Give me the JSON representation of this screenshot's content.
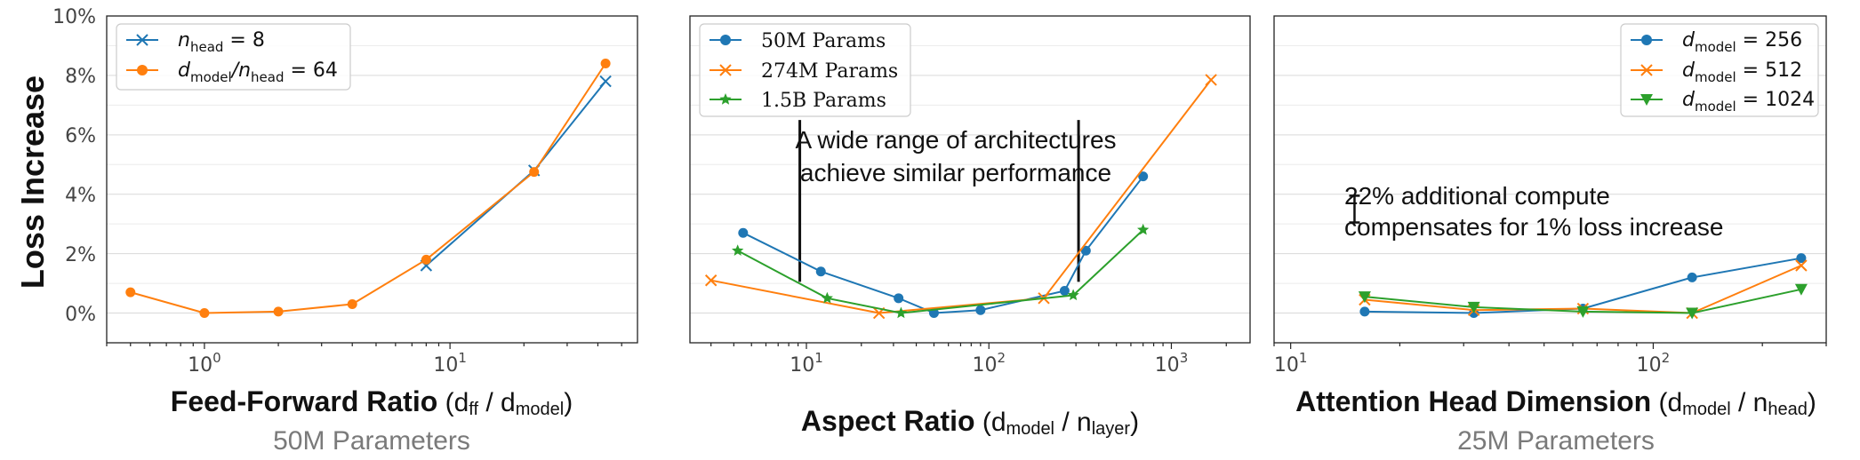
{
  "figure": {
    "ylabel": "Loss Increase",
    "y_ticks": [
      "0%",
      "2%",
      "4%",
      "6%",
      "8%",
      "10%"
    ]
  },
  "colors": {
    "blue": "#1f77b4",
    "orange": "#ff7f0e",
    "green": "#2ca02c"
  },
  "panels": [
    {
      "xlabel": {
        "bold": "Feed-Forward Ratio",
        "normal": " (d",
        "s1": "ff",
        "mid": " / d",
        "s2": "model",
        "end": ")"
      },
      "subtitle": "50M Parameters",
      "legend": {
        "items": [
          {
            "base": "n",
            "sub": "head",
            "rest": " = 8"
          },
          {
            "base": "d",
            "sub": "model",
            "mid": "/n",
            "sub2": "head",
            "rest": " = 64"
          }
        ]
      }
    },
    {
      "xlabel": {
        "bold": "Aspect Ratio",
        "normal": " (d",
        "s1": "model",
        "mid": " / n",
        "s2": "layer",
        "end": ")"
      },
      "subtitle": "",
      "legend": {
        "items": [
          "50M Params",
          "274M Params",
          "1.5B Params"
        ]
      },
      "annotation": [
        "A wide range of architectures",
        "achieve similar performance"
      ]
    },
    {
      "xlabel": {
        "bold": "Attention Head Dimension",
        "normal": " (d",
        "s1": "model",
        "mid": " / n",
        "s2": "head",
        "end": ")"
      },
      "subtitle": "25M Parameters",
      "legend": {
        "items": [
          {
            "base": "d",
            "sub": "model",
            "rest": " = 256"
          },
          {
            "base": "d",
            "sub": "model",
            "rest": " = 512"
          },
          {
            "base": "d",
            "sub": "model",
            "rest": " = 1024"
          }
        ]
      },
      "annotation": [
        "22% additional compute",
        "compensates for 1% loss increase"
      ]
    }
  ],
  "chart_data": [
    {
      "type": "line",
      "xscale": "log",
      "xlim": [
        0.4,
        58
      ],
      "ylim": [
        -1,
        10
      ],
      "x_tick_labels": [
        "10^0",
        "10^1"
      ],
      "grid": "horizontal",
      "legend_position": "top-left",
      "series": [
        {
          "name": "n_head = 8",
          "color": "#1f77b4",
          "marker": "x",
          "x": [
            8,
            22,
            43
          ],
          "y": [
            1.6,
            4.8,
            7.8
          ]
        },
        {
          "name": "d_model/n_head = 64",
          "color": "#ff7f0e",
          "marker": "o",
          "x": [
            0.5,
            1,
            2,
            4,
            8,
            22,
            43
          ],
          "y": [
            0.7,
            0.0,
            0.05,
            0.3,
            1.8,
            4.75,
            8.4
          ]
        }
      ]
    },
    {
      "type": "line",
      "xscale": "log",
      "xlim": [
        2.3,
        2700
      ],
      "ylim": [
        -1,
        10
      ],
      "x_tick_labels": [
        "10^1",
        "10^2",
        "10^3"
      ],
      "grid": "horizontal",
      "legend_position": "top-left",
      "series": [
        {
          "name": "50M Params",
          "color": "#1f77b4",
          "marker": "o",
          "x": [
            4.5,
            12,
            32,
            50,
            90,
            260,
            340,
            700
          ],
          "y": [
            2.7,
            1.4,
            0.5,
            0.0,
            0.1,
            0.75,
            2.1,
            4.6
          ]
        },
        {
          "name": "274M Params",
          "color": "#ff7f0e",
          "marker": "x",
          "x": [
            3,
            25,
            200,
            1650
          ],
          "y": [
            1.1,
            0.0,
            0.5,
            7.85
          ]
        },
        {
          "name": "1.5B Params",
          "color": "#2ca02c",
          "marker": "*",
          "x": [
            4.2,
            13,
            33,
            290,
            700
          ],
          "y": [
            2.1,
            0.5,
            0.0,
            0.6,
            2.8
          ]
        }
      ],
      "markers_lines": [
        9.2,
        310
      ]
    },
    {
      "type": "line",
      "xscale": "log",
      "xlim": [
        9,
        300
      ],
      "ylim": [
        -1,
        10
      ],
      "x_tick_labels": [
        "10^1",
        "10^2"
      ],
      "grid": "horizontal",
      "legend_position": "top-right",
      "series": [
        {
          "name": "d_model = 256",
          "color": "#1f77b4",
          "marker": "o",
          "x": [
            16,
            32,
            64,
            128,
            256
          ],
          "y": [
            0.05,
            0.0,
            0.15,
            1.2,
            1.85
          ]
        },
        {
          "name": "d_model = 512",
          "color": "#ff7f0e",
          "marker": "x",
          "x": [
            16,
            32,
            64,
            128,
            256
          ],
          "y": [
            0.45,
            0.1,
            0.15,
            0.0,
            1.6
          ]
        },
        {
          "name": "d_model = 1024",
          "color": "#2ca02c",
          "marker": "v",
          "x": [
            16,
            32,
            64,
            128,
            256
          ],
          "y": [
            0.55,
            0.2,
            0.05,
            0.0,
            0.8
          ]
        }
      ],
      "error_bar": {
        "x": 15,
        "y": 3.5,
        "half_height": 0.45
      }
    }
  ]
}
